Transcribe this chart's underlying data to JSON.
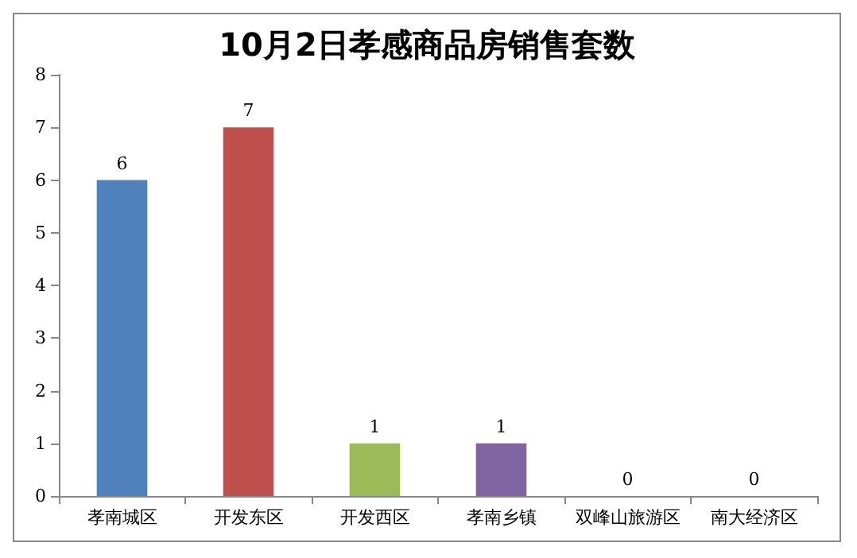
{
  "chart_data": {
    "type": "bar",
    "title": "10月2日孝感商品房销售套数",
    "categories": [
      "孝南城区",
      "开发东区",
      "开发西区",
      "孝南乡镇",
      "双峰山旅游区",
      "南大经济区"
    ],
    "values": [
      6,
      7,
      1,
      1,
      0,
      0
    ],
    "colors": [
      "#4f81bd",
      "#c0504d",
      "#9bbb59",
      "#8064a2",
      "#4bacc6",
      "#f79646"
    ],
    "ylim": [
      0,
      8
    ],
    "yticks": [
      0,
      1,
      2,
      3,
      4,
      5,
      6,
      7,
      8
    ],
    "grid": false,
    "data_labels": true
  }
}
